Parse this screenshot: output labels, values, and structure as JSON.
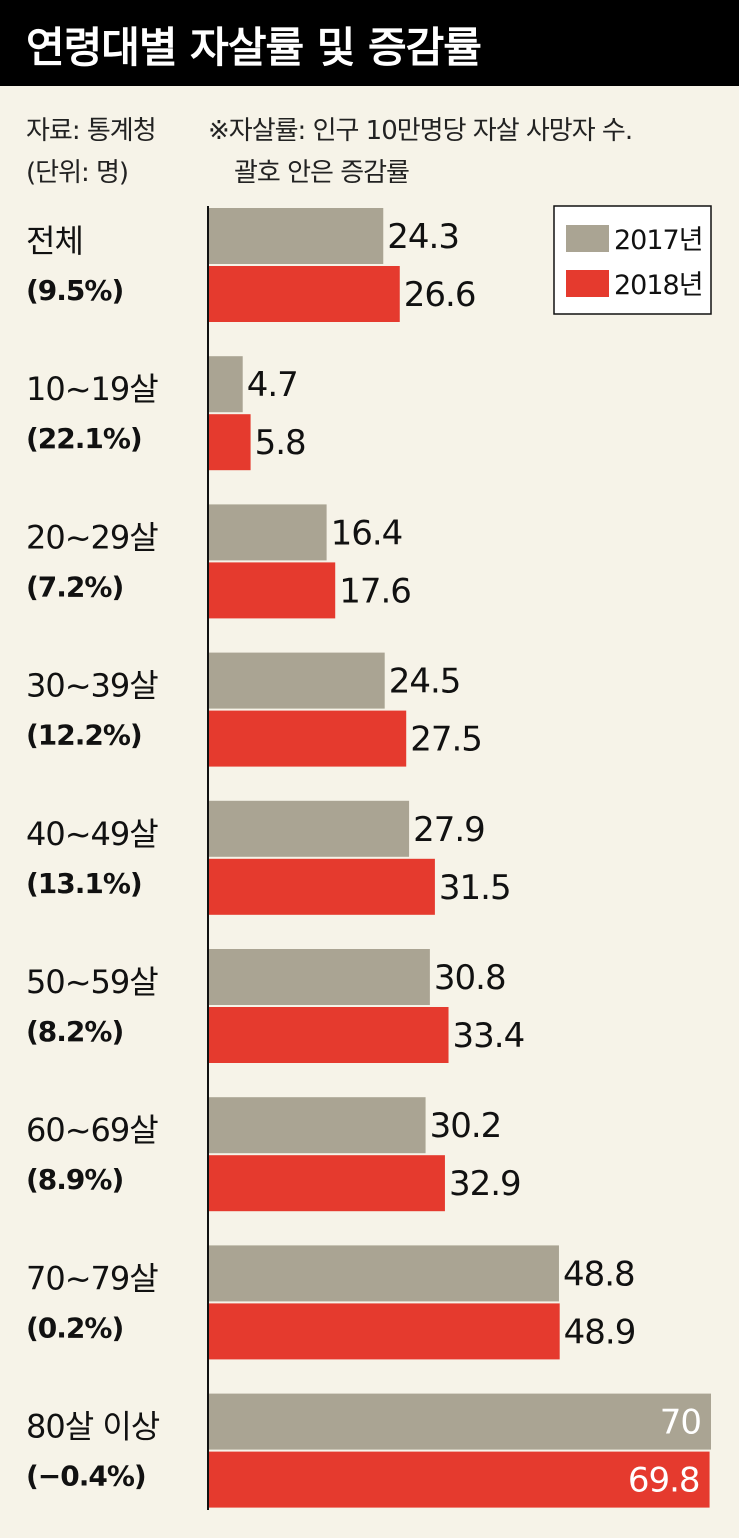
{
  "header": {
    "title": "연령대별 자살률 및 증감률"
  },
  "notes": {
    "source": "자료: 통계청",
    "unit": "(단위: 명)",
    "definition": "※자살률: 인구 10만명당 자살 사망자 수.",
    "paren_note": "괄호 안은 증감률"
  },
  "colors": {
    "series_2017": "#aaa493",
    "series_2018": "#e53a2e",
    "background": "#f6f3e8",
    "title_bg": "#000000"
  },
  "chart_data": {
    "type": "bar",
    "orientation": "horizontal",
    "title": "연령대별 자살률 및 증감률",
    "categories": [
      "전체",
      "10~19살",
      "20~29살",
      "30~39살",
      "40~49살",
      "50~59살",
      "60~69살",
      "70~79살",
      "80살 이상"
    ],
    "change_rates": [
      "(9.5%)",
      "(22.1%)",
      "(7.2%)",
      "(12.2%)",
      "(13.1%)",
      "(8.2%)",
      "(8.9%)",
      "(0.2%)",
      "(−0.4%)"
    ],
    "series": [
      {
        "name": "2017년",
        "values": [
          24.3,
          4.7,
          16.4,
          24.5,
          27.9,
          30.8,
          30.2,
          48.8,
          70
        ],
        "labels": [
          "24.3",
          "4.7",
          "16.4",
          "24.5",
          "27.9",
          "30.8",
          "30.2",
          "48.8",
          "70"
        ]
      },
      {
        "name": "2018년",
        "values": [
          26.6,
          5.8,
          17.6,
          27.5,
          31.5,
          33.4,
          32.9,
          48.9,
          69.8
        ],
        "labels": [
          "26.6",
          "5.8",
          "17.6",
          "27.5",
          "31.5",
          "33.4",
          "32.9",
          "48.9",
          "69.8"
        ]
      }
    ],
    "xlim": [
      0,
      70
    ],
    "grid": false,
    "legend_position": "top-right"
  }
}
